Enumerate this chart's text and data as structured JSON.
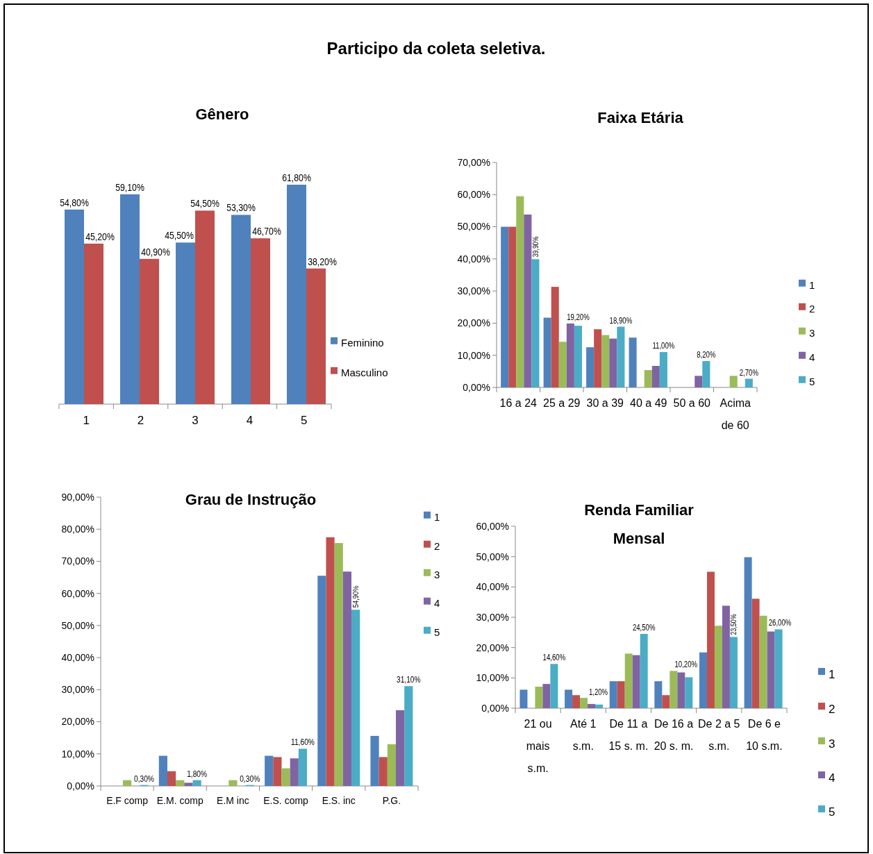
{
  "chart_data": [
    {
      "type": "other",
      "title": "Participo da coleta seletiva."
    },
    {
      "type": "bar",
      "title": "Gênero",
      "categories": [
        "1",
        "2",
        "3",
        "4",
        "5"
      ],
      "legend": "right",
      "series": [
        {
          "name": "Feminino",
          "color": "#4f81bd",
          "values": [
            54.8,
            59.1,
            45.5,
            53.3,
            61.8
          ],
          "value_labels": [
            "54,80%",
            "59,10%",
            "45,50%",
            "53,30%",
            "61,80%"
          ]
        },
        {
          "name": "Masculino",
          "color": "#c0504d",
          "values": [
            45.2,
            40.9,
            54.5,
            46.7,
            38.2
          ],
          "value_labels": [
            "45,20%",
            "40,90%",
            "54,50%",
            "46,70%",
            "38,20%"
          ]
        }
      ]
    },
    {
      "type": "bar",
      "title": "Faixa Etária",
      "categories": [
        "16 a 24",
        "25 a 29",
        "30 a 39",
        "40 a 49",
        "50 a 60",
        "Acima de 60"
      ],
      "ylim": [
        0,
        70
      ],
      "yticks": [
        {
          "value": 0,
          "label": "0,00%"
        },
        {
          "value": 10,
          "label": "10,00%"
        },
        {
          "value": 20,
          "label": "20,00%"
        },
        {
          "value": 30,
          "label": "30,00%"
        },
        {
          "value": 40,
          "label": "40,00%"
        },
        {
          "value": 50,
          "label": "50,00%"
        },
        {
          "value": 60,
          "label": "60,00%"
        },
        {
          "value": 70,
          "label": "70,00%"
        }
      ],
      "legend": "right",
      "series": [
        {
          "name": "1",
          "color": "#4f81bd",
          "values": [
            50,
            21.7,
            12.5,
            15.5,
            0,
            0
          ]
        },
        {
          "name": "2",
          "color": "#c0504d",
          "values": [
            50,
            31.3,
            18.1,
            0,
            0,
            0
          ]
        },
        {
          "name": "3",
          "color": "#9bbb59",
          "values": [
            59.5,
            14.2,
            16.3,
            5.4,
            0,
            3.6
          ]
        },
        {
          "name": "4",
          "color": "#8064a2",
          "values": [
            53.8,
            19.9,
            15.2,
            6.7,
            3.6,
            0
          ]
        },
        {
          "name": "5",
          "color": "#4bacc6",
          "values": [
            39.9,
            19.2,
            18.9,
            11.0,
            8.2,
            2.7
          ],
          "value_labels": [
            "39,90%",
            "19,20%",
            "18,90%",
            "11,00%",
            "8,20%",
            "2,70%"
          ]
        }
      ]
    },
    {
      "type": "bar",
      "title": "Grau de Instrução",
      "categories": [
        "E.F comp",
        "E.M. comp",
        "E.M inc",
        "E.S. comp",
        "E.S. inc",
        "P.G."
      ],
      "ylim": [
        0,
        90
      ],
      "yticks": [
        {
          "value": 0,
          "label": "0,00%"
        },
        {
          "value": 10,
          "label": "10,00%"
        },
        {
          "value": 20,
          "label": "20,00%"
        },
        {
          "value": 30,
          "label": "30,00%"
        },
        {
          "value": 40,
          "label": "40,00%"
        },
        {
          "value": 50,
          "label": "50,00%"
        },
        {
          "value": 60,
          "label": "60,00%"
        },
        {
          "value": 70,
          "label": "70,00%"
        },
        {
          "value": 80,
          "label": "80,00%"
        },
        {
          "value": 90,
          "label": "90,00%"
        }
      ],
      "legend": "top right",
      "series": [
        {
          "name": "1",
          "color": "#4f81bd",
          "values": [
            0,
            9.4,
            0,
            9.4,
            65.5,
            15.6
          ]
        },
        {
          "name": "2",
          "color": "#c0504d",
          "values": [
            0,
            4.6,
            0,
            9.0,
            77.5,
            9.0
          ]
        },
        {
          "name": "3",
          "color": "#9bbb59",
          "values": [
            1.8,
            1.8,
            1.8,
            5.5,
            75.7,
            13.0
          ]
        },
        {
          "name": "4",
          "color": "#8064a2",
          "values": [
            0,
            1.0,
            0,
            8.6,
            66.8,
            23.6
          ]
        },
        {
          "name": "5",
          "color": "#4bacc6",
          "values": [
            0.3,
            1.8,
            0.3,
            11.6,
            54.9,
            31.1
          ],
          "value_labels": [
            "0,30%",
            "1,80%",
            "0,30%",
            "11,60%",
            "54,90%",
            "31,10%"
          ]
        }
      ]
    },
    {
      "type": "bar",
      "title": "Renda Familiar Mensal",
      "categories": [
        "21 ou mais s.m.",
        "Até 1 s.m.",
        "De 11 a 15 s. m.",
        "De 16 a 20 s. m.",
        "De 2 a 5 s.m.",
        "De 6 e 10 s.m."
      ],
      "ylim": [
        0,
        60
      ],
      "yticks": [
        {
          "value": 0,
          "label": "0,00%"
        },
        {
          "value": 10,
          "label": "10,00%"
        },
        {
          "value": 20,
          "label": "20,00%"
        },
        {
          "value": 30,
          "label": "30,00%"
        },
        {
          "value": 40,
          "label": "40,00%"
        },
        {
          "value": 50,
          "label": "50,00%"
        },
        {
          "value": 60,
          "label": "60,00%"
        }
      ],
      "legend": "right",
      "series": [
        {
          "name": "1",
          "color": "#4f81bd",
          "values": [
            6.1,
            6.1,
            8.9,
            8.9,
            18.4,
            49.8
          ]
        },
        {
          "name": "2",
          "color": "#c0504d",
          "values": [
            0,
            4.3,
            8.9,
            4.3,
            45.0,
            36.1
          ]
        },
        {
          "name": "3",
          "color": "#9bbb59",
          "values": [
            7.1,
            3.4,
            18.0,
            12.3,
            27.2,
            30.5
          ]
        },
        {
          "name": "4",
          "color": "#8064a2",
          "values": [
            8.0,
            1.4,
            17.5,
            11.8,
            33.8,
            25.3
          ]
        },
        {
          "name": "5",
          "color": "#4bacc6",
          "values": [
            14.6,
            1.2,
            24.5,
            10.2,
            23.5,
            26.0
          ],
          "value_labels": [
            "14,60%",
            "1,20%",
            "24,50%",
            "10,20%",
            "23,50%",
            "26,00%"
          ]
        }
      ]
    }
  ]
}
